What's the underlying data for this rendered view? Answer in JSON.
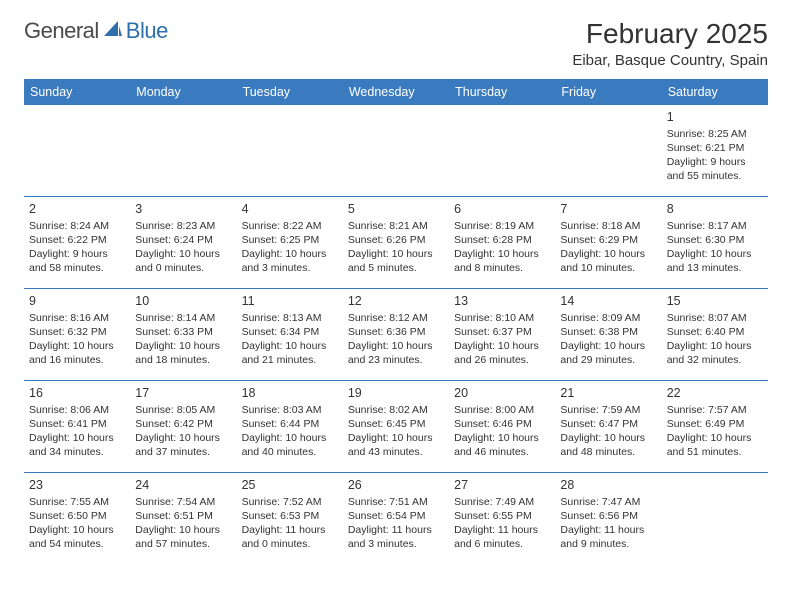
{
  "brand": {
    "word1": "General",
    "word2": "Blue"
  },
  "header": {
    "month_title": "February 2025",
    "location": "Eibar, Basque Country, Spain"
  },
  "colors": {
    "header_bg": "#3a7bbf",
    "header_text": "#ffffff",
    "border": "#3a7bbf",
    "text": "#333333",
    "logo_gray": "#4a4a4a",
    "logo_blue": "#2f6fab",
    "page_bg": "#ffffff"
  },
  "typography": {
    "month_title_size_pt": 21,
    "location_size_pt": 11,
    "day_header_size_pt": 9.5,
    "cell_text_size_pt": 8,
    "daynum_size_pt": 9.5,
    "font_family": "Arial"
  },
  "calendar": {
    "columns": [
      "Sunday",
      "Monday",
      "Tuesday",
      "Wednesday",
      "Thursday",
      "Friday",
      "Saturday"
    ],
    "weeks": [
      [
        null,
        null,
        null,
        null,
        null,
        null,
        {
          "n": "1",
          "sr": "Sunrise: 8:25 AM",
          "ss": "Sunset: 6:21 PM",
          "dl": "Daylight: 9 hours and 55 minutes."
        }
      ],
      [
        {
          "n": "2",
          "sr": "Sunrise: 8:24 AM",
          "ss": "Sunset: 6:22 PM",
          "dl": "Daylight: 9 hours and 58 minutes."
        },
        {
          "n": "3",
          "sr": "Sunrise: 8:23 AM",
          "ss": "Sunset: 6:24 PM",
          "dl": "Daylight: 10 hours and 0 minutes."
        },
        {
          "n": "4",
          "sr": "Sunrise: 8:22 AM",
          "ss": "Sunset: 6:25 PM",
          "dl": "Daylight: 10 hours and 3 minutes."
        },
        {
          "n": "5",
          "sr": "Sunrise: 8:21 AM",
          "ss": "Sunset: 6:26 PM",
          "dl": "Daylight: 10 hours and 5 minutes."
        },
        {
          "n": "6",
          "sr": "Sunrise: 8:19 AM",
          "ss": "Sunset: 6:28 PM",
          "dl": "Daylight: 10 hours and 8 minutes."
        },
        {
          "n": "7",
          "sr": "Sunrise: 8:18 AM",
          "ss": "Sunset: 6:29 PM",
          "dl": "Daylight: 10 hours and 10 minutes."
        },
        {
          "n": "8",
          "sr": "Sunrise: 8:17 AM",
          "ss": "Sunset: 6:30 PM",
          "dl": "Daylight: 10 hours and 13 minutes."
        }
      ],
      [
        {
          "n": "9",
          "sr": "Sunrise: 8:16 AM",
          "ss": "Sunset: 6:32 PM",
          "dl": "Daylight: 10 hours and 16 minutes."
        },
        {
          "n": "10",
          "sr": "Sunrise: 8:14 AM",
          "ss": "Sunset: 6:33 PM",
          "dl": "Daylight: 10 hours and 18 minutes."
        },
        {
          "n": "11",
          "sr": "Sunrise: 8:13 AM",
          "ss": "Sunset: 6:34 PM",
          "dl": "Daylight: 10 hours and 21 minutes."
        },
        {
          "n": "12",
          "sr": "Sunrise: 8:12 AM",
          "ss": "Sunset: 6:36 PM",
          "dl": "Daylight: 10 hours and 23 minutes."
        },
        {
          "n": "13",
          "sr": "Sunrise: 8:10 AM",
          "ss": "Sunset: 6:37 PM",
          "dl": "Daylight: 10 hours and 26 minutes."
        },
        {
          "n": "14",
          "sr": "Sunrise: 8:09 AM",
          "ss": "Sunset: 6:38 PM",
          "dl": "Daylight: 10 hours and 29 minutes."
        },
        {
          "n": "15",
          "sr": "Sunrise: 8:07 AM",
          "ss": "Sunset: 6:40 PM",
          "dl": "Daylight: 10 hours and 32 minutes."
        }
      ],
      [
        {
          "n": "16",
          "sr": "Sunrise: 8:06 AM",
          "ss": "Sunset: 6:41 PM",
          "dl": "Daylight: 10 hours and 34 minutes."
        },
        {
          "n": "17",
          "sr": "Sunrise: 8:05 AM",
          "ss": "Sunset: 6:42 PM",
          "dl": "Daylight: 10 hours and 37 minutes."
        },
        {
          "n": "18",
          "sr": "Sunrise: 8:03 AM",
          "ss": "Sunset: 6:44 PM",
          "dl": "Daylight: 10 hours and 40 minutes."
        },
        {
          "n": "19",
          "sr": "Sunrise: 8:02 AM",
          "ss": "Sunset: 6:45 PM",
          "dl": "Daylight: 10 hours and 43 minutes."
        },
        {
          "n": "20",
          "sr": "Sunrise: 8:00 AM",
          "ss": "Sunset: 6:46 PM",
          "dl": "Daylight: 10 hours and 46 minutes."
        },
        {
          "n": "21",
          "sr": "Sunrise: 7:59 AM",
          "ss": "Sunset: 6:47 PM",
          "dl": "Daylight: 10 hours and 48 minutes."
        },
        {
          "n": "22",
          "sr": "Sunrise: 7:57 AM",
          "ss": "Sunset: 6:49 PM",
          "dl": "Daylight: 10 hours and 51 minutes."
        }
      ],
      [
        {
          "n": "23",
          "sr": "Sunrise: 7:55 AM",
          "ss": "Sunset: 6:50 PM",
          "dl": "Daylight: 10 hours and 54 minutes."
        },
        {
          "n": "24",
          "sr": "Sunrise: 7:54 AM",
          "ss": "Sunset: 6:51 PM",
          "dl": "Daylight: 10 hours and 57 minutes."
        },
        {
          "n": "25",
          "sr": "Sunrise: 7:52 AM",
          "ss": "Sunset: 6:53 PM",
          "dl": "Daylight: 11 hours and 0 minutes."
        },
        {
          "n": "26",
          "sr": "Sunrise: 7:51 AM",
          "ss": "Sunset: 6:54 PM",
          "dl": "Daylight: 11 hours and 3 minutes."
        },
        {
          "n": "27",
          "sr": "Sunrise: 7:49 AM",
          "ss": "Sunset: 6:55 PM",
          "dl": "Daylight: 11 hours and 6 minutes."
        },
        {
          "n": "28",
          "sr": "Sunrise: 7:47 AM",
          "ss": "Sunset: 6:56 PM",
          "dl": "Daylight: 11 hours and 9 minutes."
        },
        null
      ]
    ]
  }
}
